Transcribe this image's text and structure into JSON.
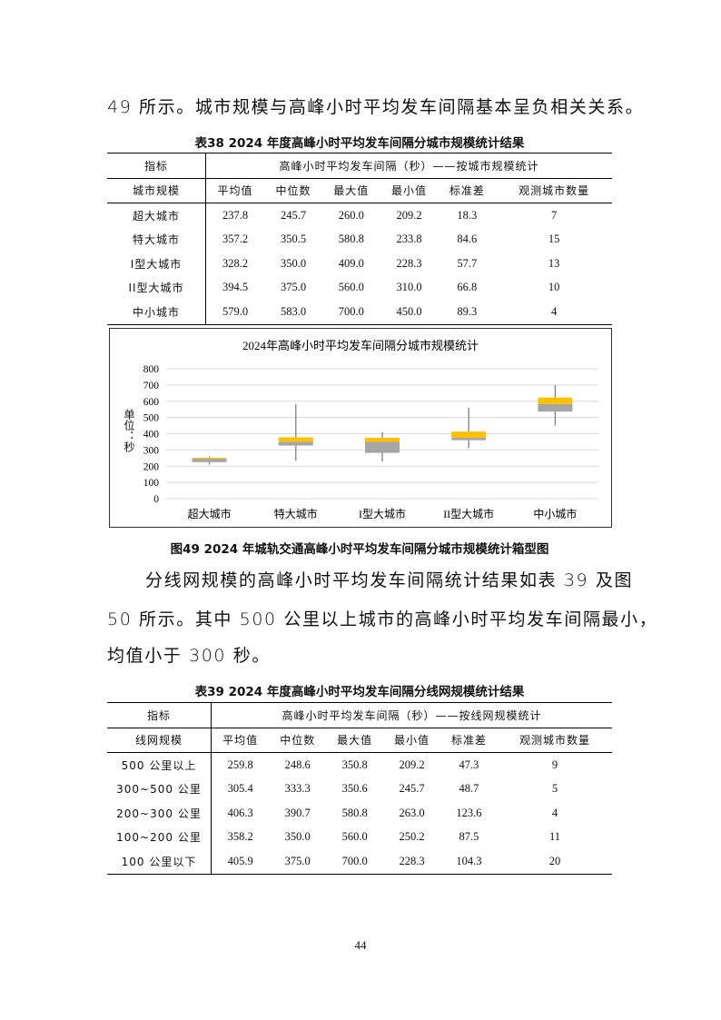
{
  "paragraphs": [
    "49 所示。城市规模与高峰小时平均发车间隔基本呈负相关关系。",
    "分线网规模的高峰小时平均发车间隔统计结果如表 39 及图",
    "50 所示。其中 500 公里以上城市的高峰小时平均发车间隔最小，",
    "均值小于 300 秒。"
  ],
  "table38": {
    "caption": "表38   2024 年度高峰小时平均发车间隔分城市规模统计结果",
    "header1": [
      "指标",
      "高峰小时平均发车间隔（秒）——按城市规模统计"
    ],
    "header2": [
      "城市规模",
      "平均值",
      "中位数",
      "最大值",
      "最小值",
      "标准差",
      "观测城市数量"
    ],
    "rows": [
      [
        "超大城市",
        "237.8",
        "245.7",
        "260.0",
        "209.2",
        "18.3",
        "7"
      ],
      [
        "特大城市",
        "357.2",
        "350.5",
        "580.8",
        "233.8",
        "84.6",
        "15"
      ],
      [
        "I型大城市",
        "328.2",
        "350.0",
        "409.0",
        "228.3",
        "57.7",
        "13"
      ],
      [
        "II型大城市",
        "394.5",
        "375.0",
        "560.0",
        "310.0",
        "66.8",
        "10"
      ],
      [
        "中小城市",
        "579.0",
        "583.0",
        "700.0",
        "450.0",
        "89.3",
        "4"
      ]
    ]
  },
  "chart_data": {
    "type": "box",
    "title": "2024年高峰小时平均发车间隔分城市规模统计",
    "ylabel": "单位：秒",
    "ylim": [
      0,
      800
    ],
    "yticks": [
      0,
      100,
      200,
      300,
      400,
      500,
      600,
      700,
      800
    ],
    "grid": true,
    "categories": [
      "超大城市",
      "特大城市",
      "I型大城市",
      "II型大城市",
      "中小城市"
    ],
    "min": [
      209.2,
      233.8,
      228.3,
      310.0,
      450.0
    ],
    "q1": [
      225,
      327,
      282,
      360,
      536
    ],
    "median": [
      245.7,
      350.5,
      350.0,
      375.0,
      583.0
    ],
    "q3": [
      252,
      378,
      375,
      413,
      623
    ],
    "max": [
      260.0,
      580.8,
      409.0,
      560.0,
      700.0
    ],
    "colors": {
      "lower_box": "#A5A5A5",
      "upper_box": "#FFC000",
      "whisker": "#808080",
      "grid": "#D9D9D9"
    }
  },
  "figure49_caption": "图49   2024 年城轨交通高峰小时平均发车间隔分城市规模统计箱型图",
  "table39": {
    "caption": "表39   2024 年度高峰小时平均发车间隔分线网规模统计结果",
    "header1": [
      "指标",
      "高峰小时平均发车间隔（秒）——按线网规模统计"
    ],
    "header2": [
      "线网规模",
      "平均值",
      "中位数",
      "最大值",
      "最小值",
      "标准差",
      "观测城市数量"
    ],
    "rows": [
      [
        "500 公里以上",
        "259.8",
        "248.6",
        "350.8",
        "209.2",
        "47.3",
        "9"
      ],
      [
        "300~500 公里",
        "305.4",
        "333.3",
        "350.6",
        "245.7",
        "48.7",
        "5"
      ],
      [
        "200~300 公里",
        "406.3",
        "390.7",
        "580.8",
        "263.0",
        "123.6",
        "4"
      ],
      [
        "100~200 公里",
        "358.2",
        "350.0",
        "560.0",
        "250.2",
        "87.5",
        "11"
      ],
      [
        "100 公里以下",
        "405.9",
        "375.0",
        "700.0",
        "228.3",
        "104.3",
        "20"
      ]
    ]
  },
  "page_number": "44"
}
